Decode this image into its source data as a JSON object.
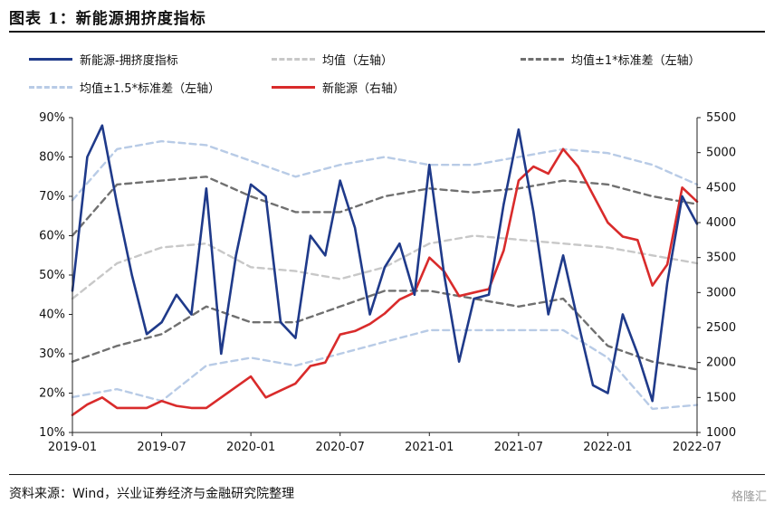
{
  "header": {
    "title": "图表 1：新能源拥挤度指标"
  },
  "footer": {
    "source": "资料来源：Wind，兴业证券经济与金融研究院整理",
    "watermark": "格隆汇"
  },
  "chart_data": {
    "type": "line",
    "legend_position": "top",
    "x_ticks": [
      "2019-01",
      "2019-07",
      "2020-01",
      "2020-07",
      "2021-01",
      "2021-07",
      "2022-01",
      "2022-07"
    ],
    "x_range": [
      "2019-01",
      "2022-07"
    ],
    "y_left": {
      "ticks": [
        "10%",
        "20%",
        "30%",
        "40%",
        "50%",
        "60%",
        "70%",
        "80%",
        "90%"
      ],
      "range": [
        10,
        90
      ]
    },
    "y_right": {
      "ticks": [
        "1000",
        "1500",
        "2000",
        "2500",
        "3000",
        "3500",
        "4000",
        "4500",
        "5000",
        "5500"
      ],
      "range": [
        1000,
        5500
      ]
    },
    "grid": false,
    "colors": {
      "crowding": "#1f3a8a",
      "mean": "#c8c8c8",
      "band1": "#707070",
      "band15": "#b8cbe6",
      "index": "#d92b2b"
    },
    "series": [
      {
        "name": "新能源-拥挤度指标",
        "key": "crowding",
        "axis": "left",
        "style": "solid",
        "x": [
          "2019-01",
          "2019-02",
          "2019-03",
          "2019-04",
          "2019-05",
          "2019-06",
          "2019-07",
          "2019-08",
          "2019-09",
          "2019-10",
          "2019-11",
          "2019-12",
          "2020-01",
          "2020-02",
          "2020-03",
          "2020-04",
          "2020-05",
          "2020-06",
          "2020-07",
          "2020-08",
          "2020-09",
          "2020-10",
          "2020-11",
          "2020-12",
          "2021-01",
          "2021-02",
          "2021-03",
          "2021-04",
          "2021-05",
          "2021-06",
          "2021-07",
          "2021-08",
          "2021-09",
          "2021-10",
          "2021-11",
          "2021-12",
          "2022-01",
          "2022-02",
          "2022-03",
          "2022-04",
          "2022-05",
          "2022-06",
          "2022-07"
        ],
        "values": [
          46,
          80,
          88,
          68,
          50,
          35,
          38,
          45,
          40,
          72,
          30,
          55,
          73,
          70,
          38,
          34,
          60,
          55,
          74,
          62,
          40,
          52,
          58,
          45,
          78,
          50,
          28,
          44,
          45,
          68,
          87,
          66,
          40,
          55,
          38,
          22,
          20,
          40,
          30,
          18,
          48,
          70,
          63
        ]
      },
      {
        "name": "均值（左轴）",
        "key": "mean",
        "axis": "left",
        "style": "dashed",
        "x": [
          "2019-01",
          "2019-04",
          "2019-07",
          "2019-10",
          "2020-01",
          "2020-04",
          "2020-07",
          "2020-10",
          "2021-01",
          "2021-04",
          "2021-07",
          "2021-10",
          "2022-01",
          "2022-04",
          "2022-07"
        ],
        "values": [
          44,
          53,
          57,
          58,
          52,
          51,
          49,
          52,
          58,
          60,
          59,
          58,
          57,
          55,
          53
        ]
      },
      {
        "name": "均值±1*标准差（左轴）",
        "key": "band1",
        "axis": "left",
        "style": "dashed",
        "x": [
          "2019-01",
          "2019-04",
          "2019-07",
          "2019-10",
          "2020-01",
          "2020-04",
          "2020-07",
          "2020-10",
          "2021-01",
          "2021-04",
          "2021-07",
          "2021-10",
          "2022-01",
          "2022-04",
          "2022-07"
        ],
        "values": [
          60,
          73,
          74,
          75,
          70,
          66,
          66,
          70,
          72,
          71,
          72,
          74,
          73,
          70,
          68
        ],
        "lower": [
          28,
          32,
          35,
          42,
          38,
          38,
          42,
          46,
          46,
          44,
          42,
          44,
          32,
          28,
          26
        ]
      },
      {
        "name": "均值±1.5*标准差（左轴）",
        "key": "band15",
        "axis": "left",
        "style": "dashed",
        "x": [
          "2019-01",
          "2019-04",
          "2019-07",
          "2019-10",
          "2020-01",
          "2020-04",
          "2020-07",
          "2020-10",
          "2021-01",
          "2021-04",
          "2021-07",
          "2021-10",
          "2022-01",
          "2022-04",
          "2022-07"
        ],
        "values": [
          69,
          82,
          84,
          83,
          79,
          75,
          78,
          80,
          78,
          78,
          80,
          82,
          81,
          78,
          73
        ],
        "lower": [
          19,
          21,
          18,
          27,
          29,
          27,
          30,
          33,
          36,
          36,
          36,
          36,
          29,
          16,
          17
        ]
      },
      {
        "name": "新能源（右轴）",
        "key": "index",
        "axis": "right",
        "style": "solid",
        "x": [
          "2019-01",
          "2019-02",
          "2019-03",
          "2019-04",
          "2019-05",
          "2019-06",
          "2019-07",
          "2019-08",
          "2019-09",
          "2019-10",
          "2019-11",
          "2019-12",
          "2020-01",
          "2020-02",
          "2020-03",
          "2020-04",
          "2020-05",
          "2020-06",
          "2020-07",
          "2020-08",
          "2020-09",
          "2020-10",
          "2020-11",
          "2020-12",
          "2021-01",
          "2021-02",
          "2021-03",
          "2021-04",
          "2021-05",
          "2021-06",
          "2021-07",
          "2021-08",
          "2021-09",
          "2021-10",
          "2021-11",
          "2021-12",
          "2022-01",
          "2022-02",
          "2022-03",
          "2022-04",
          "2022-05",
          "2022-06",
          "2022-07"
        ],
        "values": [
          1250,
          1400,
          1500,
          1350,
          1350,
          1350,
          1450,
          1380,
          1350,
          1350,
          1500,
          1650,
          1800,
          1500,
          1600,
          1700,
          1950,
          2000,
          2400,
          2450,
          2550,
          2700,
          2900,
          3000,
          3500,
          3300,
          2950,
          3000,
          3050,
          3600,
          4600,
          4800,
          4700,
          5050,
          4800,
          4400,
          4000,
          3800,
          3750,
          3100,
          3400,
          4500,
          4300
        ]
      }
    ]
  }
}
